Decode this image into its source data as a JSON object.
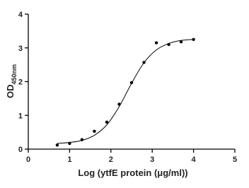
{
  "chart_data": {
    "type": "scatter",
    "xlabel": "Log (ytfE protein (μg/ml))",
    "ylabel": {
      "text": "OD",
      "subscript": "450nm"
    },
    "x": [
      0.7,
      1.0,
      1.3,
      1.6,
      1.9,
      2.2,
      2.5,
      2.8,
      3.1,
      3.4,
      3.7,
      4.0
    ],
    "series": [
      {
        "style": "points",
        "color": "#000000",
        "values": [
          0.12,
          0.17,
          0.28,
          0.53,
          0.8,
          1.33,
          1.97,
          2.57,
          3.15,
          3.1,
          3.18,
          3.25
        ]
      },
      {
        "style": "line",
        "color": "#000000",
        "values": [
          0.17,
          0.2,
          0.26,
          0.41,
          0.72,
          1.26,
          1.95,
          2.56,
          2.94,
          3.13,
          3.22,
          3.25
        ]
      }
    ],
    "xlim": [
      0,
      5
    ],
    "xticks": [
      0,
      1,
      2,
      3,
      4,
      5
    ],
    "ylim": [
      0,
      4
    ],
    "yticks": [
      0,
      1,
      2,
      3,
      4
    ]
  }
}
